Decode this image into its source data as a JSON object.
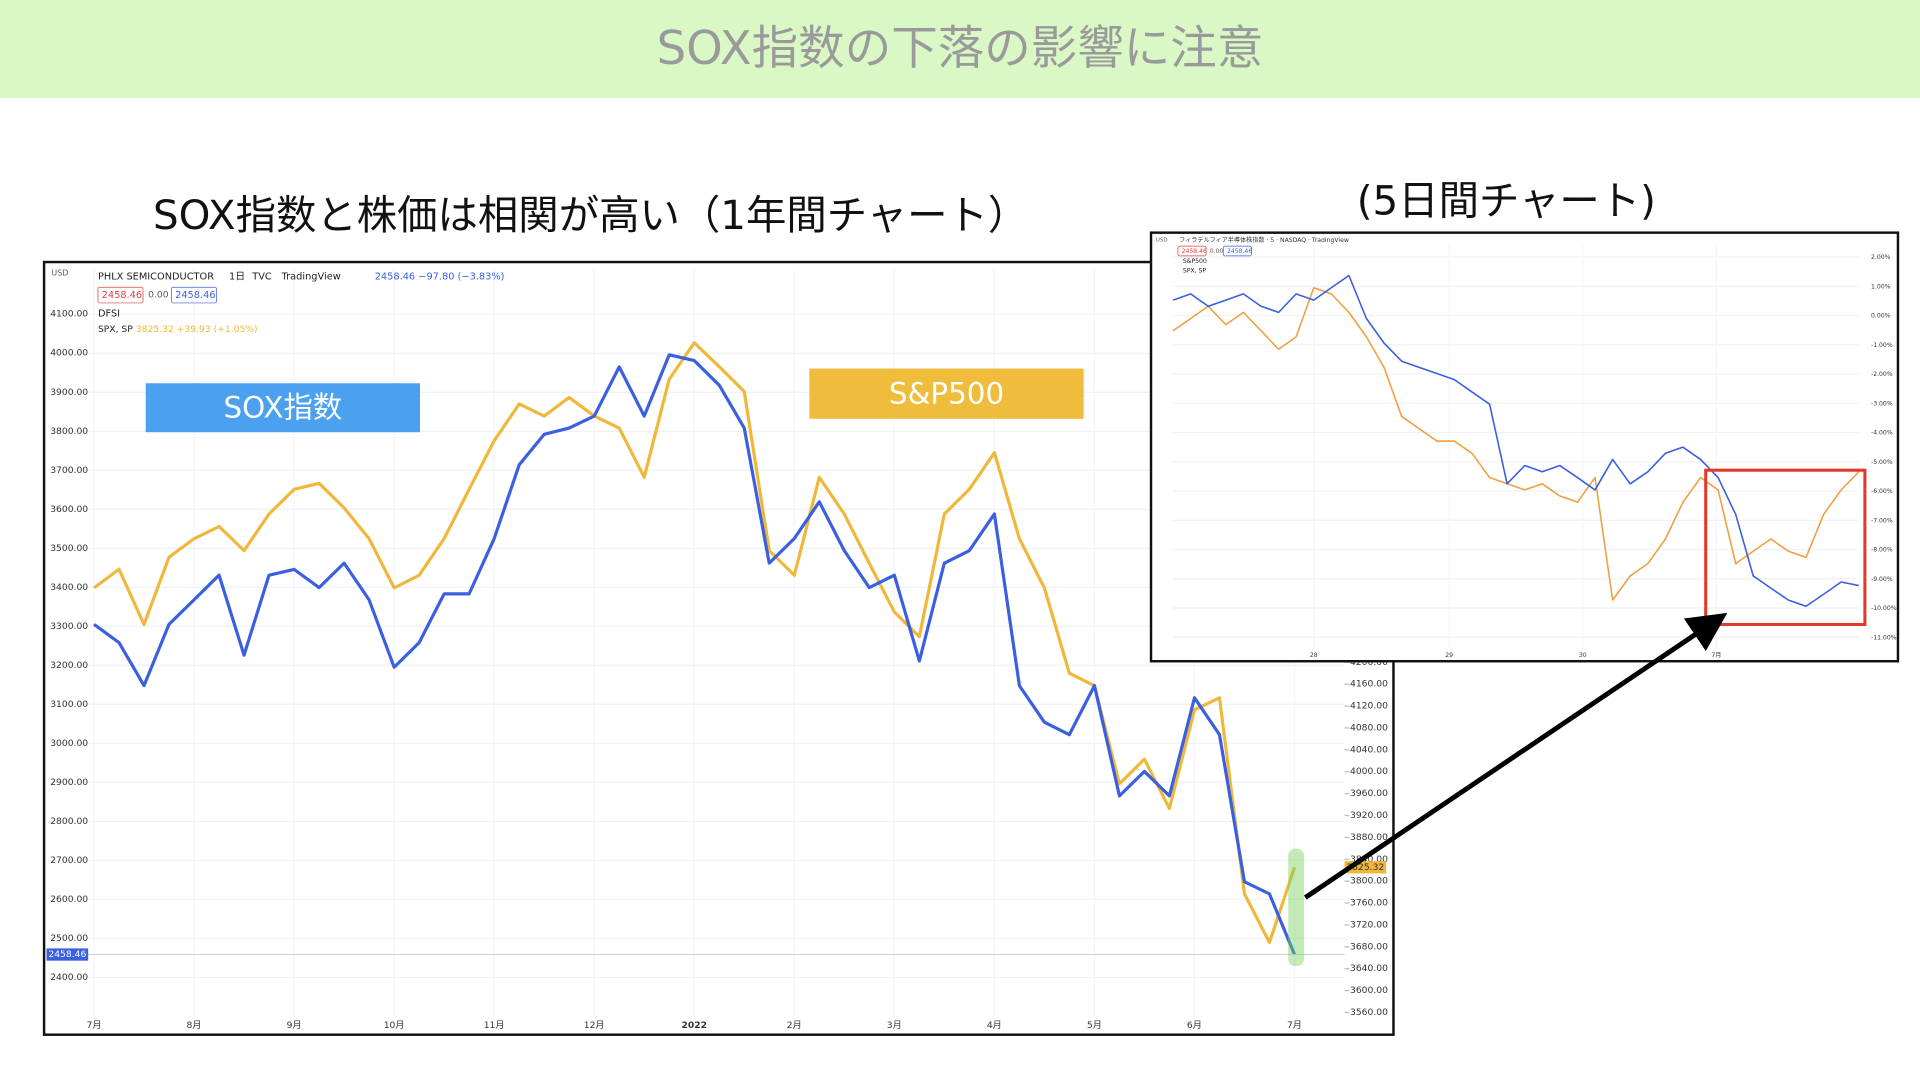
{
  "slide": {
    "title": "SOX指数の下落の影響に注意",
    "subtitle_left": "SOX指数と株価は相関が高い（1年間チャート）",
    "subtitle_right": "(5日間チャート)"
  },
  "chart_data": [
    {
      "type": "line",
      "header_texts": [
        "USD",
        "PHLX SEMICONDUCTOR",
        "1日",
        "TVC",
        "TradingView",
        "2458.46 −97.80 (−3.83%)",
        "2458.46",
        "0.00",
        "2458.46",
        "DFSI",
        "SPX, SP",
        "3825.32 +39.93 (+1.05%)"
      ],
      "x": [
        0,
        0.25,
        0.5,
        0.75,
        1,
        1.25,
        1.5,
        1.75,
        2,
        2.25,
        2.5,
        2.75,
        3,
        3.25,
        3.5,
        3.75,
        4,
        4.25,
        4.5,
        4.75,
        5,
        5.25,
        5.5,
        5.75,
        6,
        6.25,
        6.5,
        6.75,
        7,
        7.25,
        7.5,
        7.75,
        8,
        8.25,
        8.5,
        8.75,
        9,
        9.25,
        9.5,
        9.75,
        10,
        10.25,
        10.5,
        10.75,
        11,
        11.25,
        11.5,
        11.75,
        12
      ],
      "xlim": [
        -0.45,
        12.5
      ],
      "xticks": [
        {
          "value": 0,
          "label": "7月"
        },
        {
          "value": 1,
          "label": "8月"
        },
        {
          "value": 2,
          "label": "9月"
        },
        {
          "value": 3,
          "label": "10月"
        },
        {
          "value": 4,
          "label": "11月"
        },
        {
          "value": 5,
          "label": "12月"
        },
        {
          "value": 6,
          "label": "2022"
        },
        {
          "value": 7,
          "label": "2月"
        },
        {
          "value": 8,
          "label": "3月"
        },
        {
          "value": 9,
          "label": "4月"
        },
        {
          "value": 10,
          "label": "5月"
        },
        {
          "value": 11,
          "label": "6月"
        },
        {
          "value": 12,
          "label": "7月"
        }
      ],
      "ylim": [
        2300,
        4215
      ],
      "yticks": [
        {
          "value": 2400,
          "label": "2400.00"
        },
        {
          "value": 2500,
          "label": "2500.00"
        },
        {
          "value": 2600,
          "label": "2600.00"
        },
        {
          "value": 2700,
          "label": "2700.00"
        },
        {
          "value": 2800,
          "label": "2800.00"
        },
        {
          "value": 2900,
          "label": "2900.00"
        },
        {
          "value": 3000,
          "label": "3000.00"
        },
        {
          "value": 3100,
          "label": "3100.00"
        },
        {
          "value": 3200,
          "label": "3200.00"
        },
        {
          "value": 3300,
          "label": "3300.00"
        },
        {
          "value": 3400,
          "label": "3400.00"
        },
        {
          "value": 3500,
          "label": "3500.00"
        },
        {
          "value": 3600,
          "label": "3600.00"
        },
        {
          "value": 3700,
          "label": "3700.00"
        },
        {
          "value": 3800,
          "label": "3800.00"
        },
        {
          "value": 3900,
          "label": "3900.00"
        },
        {
          "value": 4000,
          "label": "4000.00"
        },
        {
          "value": 4100,
          "label": "4100.00"
        }
      ],
      "y2lim": [
        3553,
        4918
      ],
      "y2ticks": [
        {
          "value": 3560,
          "label": "3560.00"
        },
        {
          "value": 3600,
          "label": "3600.00"
        },
        {
          "value": 3640,
          "label": "3640.00"
        },
        {
          "value": 3680,
          "label": "3680.00"
        },
        {
          "value": 3720,
          "label": "3720.00"
        },
        {
          "value": 3760,
          "label": "3760.00"
        },
        {
          "value": 3800,
          "label": "3800.00"
        },
        {
          "value": 3840,
          "label": "3840.00"
        },
        {
          "value": 3880,
          "label": "3880.00"
        },
        {
          "value": 3920,
          "label": "3920.00"
        },
        {
          "value": 3960,
          "label": "3960.00"
        },
        {
          "value": 4000,
          "label": "4000.00"
        },
        {
          "value": 4040,
          "label": "4040.00"
        },
        {
          "value": 4080,
          "label": "4080.00"
        },
        {
          "value": 4120,
          "label": "4120.00"
        },
        {
          "value": 4160,
          "label": "4160.00"
        },
        {
          "value": 4200,
          "label": "4200.00"
        }
      ],
      "grid": true,
      "series": [
        {
          "name": "S&P500",
          "color": "#f0b73a",
          "axis": "y2",
          "last_label": "3825.32",
          "values": [
            4336,
            4370,
            4269,
            4392,
            4426,
            4448,
            4404,
            4471,
            4516,
            4527,
            4482,
            4426,
            4336,
            4359,
            4426,
            4516,
            4605,
            4672,
            4650,
            4684,
            4650,
            4628,
            4538,
            4717,
            4784,
            4740,
            4695,
            4404,
            4359,
            4538,
            4471,
            4381,
            4292,
            4247,
            4471,
            4516,
            4583,
            4426,
            4336,
            4180,
            4157,
            3978,
            4023,
            3933,
            4113,
            4135,
            3777,
            3688,
            3825.32
          ]
        },
        {
          "name": "SOX指数",
          "color": "#3a5fe0",
          "last_label": "2458.46",
          "values": [
            3305,
            3258,
            3148,
            3305,
            3368,
            3431,
            3226,
            3431,
            3446,
            3399,
            3462,
            3368,
            3195,
            3258,
            3383,
            3383,
            3525,
            3714,
            3792,
            3808,
            3839,
            3965,
            3839,
            3996,
            3981,
            3918,
            3808,
            3462,
            3525,
            3619,
            3494,
            3399,
            3431,
            3211,
            3462,
            3494,
            3588,
            3148,
            3054,
            3022,
            3148,
            2865,
            2928,
            2865,
            3117,
            3022,
            2645,
            2614,
            2458.46
          ]
        }
      ]
    },
    {
      "type": "line",
      "header_texts": [
        "USD",
        "フィラデルフィア半導体株指数 · 5 · NASDAQ · TradingView",
        "2458.46",
        "0.00",
        "2458.46",
        "S&P500",
        "SPX, SP"
      ],
      "x": [
        0,
        1,
        2,
        3,
        4,
        5,
        6,
        7,
        8,
        9,
        10,
        11,
        12,
        13,
        14,
        15,
        16,
        17,
        18,
        19,
        20,
        21,
        22,
        23,
        24,
        25,
        26,
        27,
        28,
        29,
        30,
        31,
        32,
        33,
        34,
        35,
        36,
        37,
        38,
        39
      ],
      "xlim": [
        0,
        39
      ],
      "xticks": [
        {
          "value": 8,
          "label": "28"
        },
        {
          "value": 15.7,
          "label": "29"
        },
        {
          "value": 23.3,
          "label": "30"
        },
        {
          "value": 30.9,
          "label": "7月"
        }
      ],
      "ylim": [
        -11.4,
        2.5
      ],
      "yticks": [
        {
          "value": 2,
          "label": "2.00%"
        },
        {
          "value": 1,
          "label": "1.00%"
        },
        {
          "value": 0,
          "label": "0.00%"
        },
        {
          "value": -1,
          "label": "-1.00%"
        },
        {
          "value": -2,
          "label": "-2.00%"
        },
        {
          "value": -3,
          "label": "-3.00%"
        },
        {
          "value": -4,
          "label": "-4.00%"
        },
        {
          "value": -5,
          "label": "-5.00%"
        },
        {
          "value": -6,
          "label": "-6.00%"
        },
        {
          "value": -7,
          "label": "-7.00%"
        },
        {
          "value": -8,
          "label": "-8.00%"
        },
        {
          "value": -9,
          "label": "-9.00%"
        },
        {
          "value": -10,
          "label": "-10.00%"
        },
        {
          "value": -11,
          "label": "-11.00%"
        }
      ],
      "grid": true,
      "series": [
        {
          "color": "#f0a040",
          "values": [
            -0.52,
            -0.1,
            0.32,
            -0.31,
            0.11,
            -0.52,
            -1.15,
            -0.73,
            0.95,
            0.74,
            0.11,
            -0.73,
            -1.77,
            -3.45,
            -3.87,
            -4.29,
            -4.29,
            -4.71,
            -5.54,
            -5.75,
            -5.96,
            -5.75,
            -6.17,
            -6.38,
            -5.54,
            -9.73,
            -8.9,
            -8.48,
            -7.64,
            -6.38,
            -5.54,
            -5.96,
            -8.48,
            -8.06,
            -7.64,
            -8.06,
            -8.27,
            -6.8,
            -5.96,
            -5.34
          ]
        },
        {
          "color": "#3a5fe0",
          "values": [
            0.53,
            0.74,
            0.32,
            0.53,
            0.74,
            0.32,
            0.11,
            0.74,
            0.53,
            0.95,
            1.37,
            -0.1,
            -0.94,
            -1.56,
            -1.77,
            -1.98,
            -2.19,
            -2.61,
            -3.03,
            -5.75,
            -5.13,
            -5.34,
            -5.13,
            -5.54,
            -5.96,
            -4.92,
            -5.75,
            -5.34,
            -4.71,
            -4.5,
            -4.92,
            -5.54,
            -6.8,
            -8.9,
            -9.32,
            -9.73,
            -9.94,
            -9.53,
            -9.11,
            -9.23
          ]
        }
      ]
    }
  ]
}
